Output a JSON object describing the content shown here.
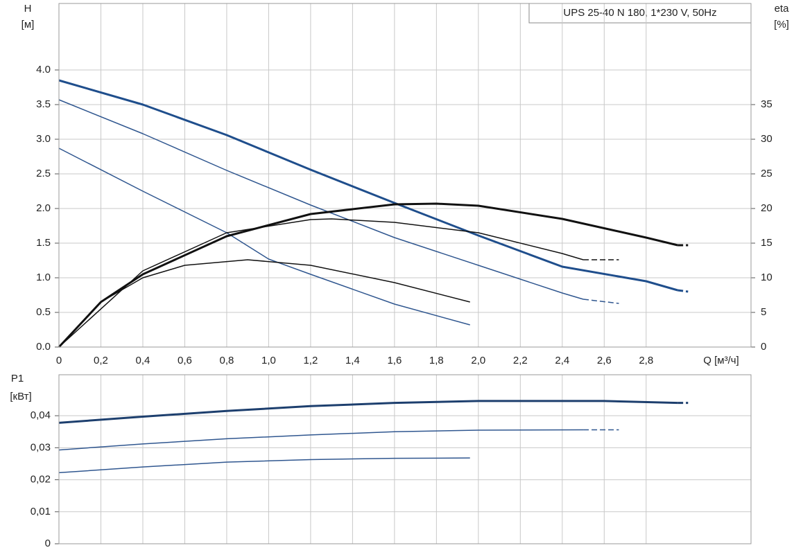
{
  "chart_data": [
    {
      "type": "line",
      "title": "UPS 25-40 N 180, 1*230 V, 50Hz",
      "y_label": "H",
      "y_unit": "[м]",
      "y2_label": "eta",
      "y2_unit": "[%]",
      "x_label": "Q [м³/ч]",
      "xlim": [
        0,
        3.3
      ],
      "xticks": [
        0,
        {
          "value": 0.2,
          "label": "0,2"
        },
        {
          "value": 0.4,
          "label": "0,4"
        },
        {
          "value": 0.6,
          "label": "0,6"
        },
        {
          "value": 0.8,
          "label": "0,8"
        },
        {
          "value": 1.0,
          "label": "1,0"
        },
        {
          "value": 1.2,
          "label": "1,2"
        },
        {
          "value": 1.4,
          "label": "1,4"
        },
        {
          "value": 1.6,
          "label": "1,6"
        },
        {
          "value": 1.8,
          "label": "1,8"
        },
        {
          "value": 2.0,
          "label": "2,0"
        },
        {
          "value": 2.2,
          "label": "2,2"
        },
        {
          "value": 2.4,
          "label": "2,4"
        },
        {
          "value": 2.6,
          "label": "2,6"
        },
        {
          "value": 2.8,
          "label": "2,8"
        }
      ],
      "ylim": [
        0,
        4.96
      ],
      "yticks": [
        {
          "value": 0,
          "label": "0.0"
        },
        0.5,
        {
          "value": 1,
          "label": "1.0"
        },
        1.5,
        {
          "value": 2,
          "label": "2.0"
        },
        2.5,
        {
          "value": 3,
          "label": "3.0"
        },
        3.5,
        {
          "value": 4,
          "label": "4.0"
        }
      ],
      "y2lim": [
        0,
        49.6
      ],
      "y2ticks": [
        0,
        5,
        10,
        15,
        20,
        25,
        30,
        35
      ],
      "grid": true,
      "series": [
        {
          "color": "#1f4e8c",
          "width": 3,
          "x": [
            0,
            0.4,
            0.8,
            1.2,
            1.6,
            2.0,
            2.4,
            2.8,
            2.95
          ],
          "values": [
            3.85,
            3.5,
            3.06,
            2.56,
            2.08,
            1.61,
            1.16,
            0.95,
            0.82
          ]
        },
        {
          "color": "#1f4e8c",
          "width": 3,
          "dash": true,
          "x": [
            2.95,
            3.0
          ],
          "values": [
            0.82,
            0.8
          ]
        },
        {
          "color": "#2f568f",
          "width": 1.5,
          "x": [
            0,
            0.4,
            0.8,
            1.2,
            1.6,
            2.0,
            2.4,
            2.5
          ],
          "values": [
            3.57,
            3.08,
            2.55,
            2.05,
            1.58,
            1.18,
            0.78,
            0.69
          ]
        },
        {
          "color": "#2f568f",
          "width": 1.5,
          "dash": true,
          "x": [
            2.5,
            2.67
          ],
          "values": [
            0.69,
            0.63
          ]
        },
        {
          "color": "#2f568f",
          "width": 1.5,
          "x": [
            0,
            0.4,
            0.8,
            1.0,
            1.2,
            1.6,
            1.96
          ],
          "values": [
            2.87,
            2.25,
            1.65,
            1.27,
            1.05,
            0.62,
            0.32
          ]
        },
        {
          "color": "#111111",
          "width": 3,
          "axis": "y2",
          "x": [
            0,
            0.2,
            0.4,
            0.8,
            1.2,
            1.6,
            1.8,
            2.0,
            2.4,
            2.8,
            2.95
          ],
          "values": [
            0,
            6.5,
            10.5,
            16,
            19.2,
            20.6,
            20.7,
            20.4,
            18.5,
            15.8,
            14.7
          ]
        },
        {
          "color": "#111111",
          "width": 3,
          "axis": "y2",
          "dash": true,
          "x": [
            2.95,
            3.0
          ],
          "values": [
            14.7,
            14.7
          ]
        },
        {
          "color": "#111111",
          "width": 1.5,
          "axis": "y2",
          "x": [
            0,
            0.4,
            0.8,
            1.2,
            1.3,
            1.6,
            2.0,
            2.4,
            2.5
          ],
          "values": [
            0,
            11,
            16.5,
            18.4,
            18.5,
            18,
            16.5,
            13.5,
            12.6
          ]
        },
        {
          "color": "#111111",
          "width": 1.5,
          "axis": "y2",
          "dash": true,
          "x": [
            2.5,
            2.67
          ],
          "values": [
            12.6,
            12.6
          ]
        },
        {
          "color": "#111111",
          "width": 1.5,
          "axis": "y2",
          "x": [
            0,
            0.2,
            0.4,
            0.6,
            0.9,
            1.2,
            1.6,
            1.96
          ],
          "values": [
            0,
            6.5,
            10,
            11.8,
            12.6,
            11.8,
            9.3,
            6.5
          ]
        }
      ]
    },
    {
      "type": "line",
      "y_label": "P1",
      "y_unit": "[кВт]",
      "xlim": [
        0,
        3.3
      ],
      "ylim": [
        0,
        0.0528
      ],
      "yticks": [
        0,
        {
          "value": 0.01,
          "label": "0,01"
        },
        {
          "value": 0.02,
          "label": "0,02"
        },
        {
          "value": 0.03,
          "label": "0,03"
        },
        {
          "value": 0.04,
          "label": "0,04"
        }
      ],
      "grid": true,
      "series": [
        {
          "color": "#1d3f6e",
          "width": 3,
          "x": [
            0,
            0.4,
            0.8,
            1.2,
            1.6,
            2.0,
            2.6,
            2.95
          ],
          "values": [
            0.0378,
            0.0397,
            0.0415,
            0.043,
            0.044,
            0.0446,
            0.0446,
            0.044
          ]
        },
        {
          "color": "#1d3f6e",
          "width": 3,
          "dash": true,
          "x": [
            2.95,
            3.0
          ],
          "values": [
            0.044,
            0.044
          ]
        },
        {
          "color": "#2f568f",
          "width": 1.5,
          "x": [
            0,
            0.4,
            0.8,
            1.2,
            1.6,
            2.0,
            2.5
          ],
          "values": [
            0.0293,
            0.0312,
            0.0328,
            0.034,
            0.035,
            0.0355,
            0.0356
          ]
        },
        {
          "color": "#2f568f",
          "width": 1.5,
          "dash": true,
          "x": [
            2.5,
            2.67
          ],
          "values": [
            0.0356,
            0.0356
          ]
        },
        {
          "color": "#2f568f",
          "width": 1.5,
          "x": [
            0,
            0.4,
            0.8,
            1.2,
            1.6,
            1.96
          ],
          "values": [
            0.0222,
            0.024,
            0.0255,
            0.0263,
            0.0267,
            0.0268
          ]
        }
      ]
    }
  ]
}
